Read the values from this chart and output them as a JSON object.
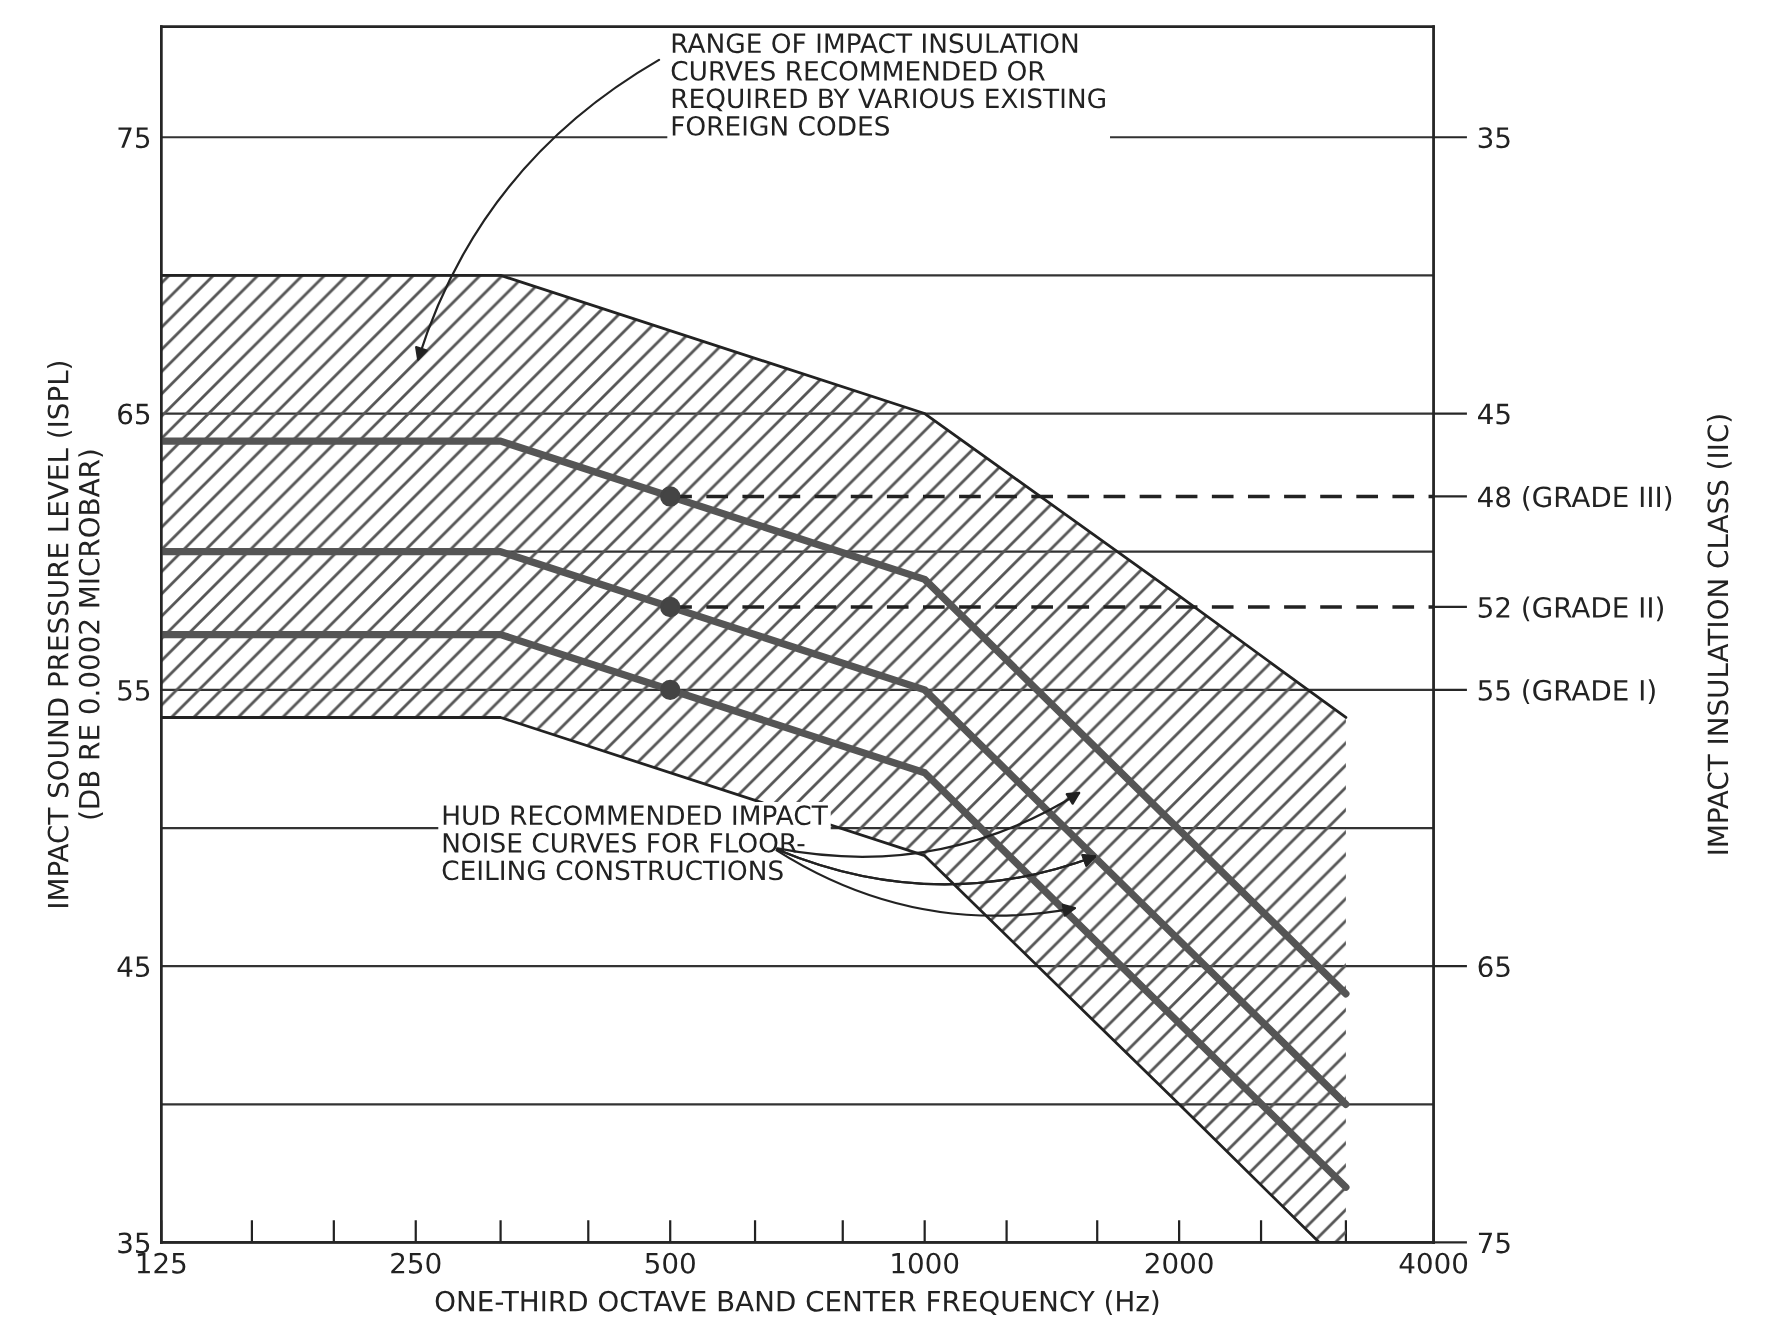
{
  "chart_data": {
    "type": "line",
    "xlabel": "ONE-THIRD OCTAVE BAND CENTER FREQUENCY (Hz)",
    "ylabel": "IMPACT SOUND PRESSURE LEVEL (ISPL)\n(DB RE 0.0002 MICROBAR)",
    "y2label": "IMPACT INSULATION CLASS (IIC)",
    "log": "x",
    "xlim": [
      125,
      4000
    ],
    "xticks": [
      125,
      {
        "value": 160,
        "label": null
      },
      {
        "value": 200,
        "label": null
      },
      250,
      {
        "value": 315,
        "label": null
      },
      {
        "value": 400,
        "label": null
      },
      500,
      {
        "value": 630,
        "label": null
      },
      {
        "value": 800,
        "label": null
      },
      1000,
      {
        "value": 1250,
        "label": null
      },
      {
        "value": 1600,
        "label": null
      },
      2000,
      {
        "value": 2500,
        "label": null
      },
      {
        "value": 3150,
        "label": null
      },
      4000
    ],
    "ylim": [
      35,
      79
    ],
    "yticks": [
      35,
      {
        "value": 40,
        "label": null
      },
      45,
      {
        "value": 50,
        "label": null
      },
      55,
      {
        "value": 60,
        "label": null
      },
      65,
      {
        "value": 70,
        "label": null
      },
      75
    ],
    "y2lim": [
      75,
      31
    ],
    "y2ticks": [
      35,
      45,
      {
        "value": 48,
        "label": "48 (GRADE III)"
      },
      {
        "value": 52,
        "label": "52 (GRADE II)"
      },
      {
        "value": 55,
        "label": "55 (GRADE I)"
      },
      65,
      75
    ],
    "grid": true,
    "series": [
      {
        "type": "area",
        "color": "#555555",
        "x": [
          125,
          315,
          1000,
          2000,
          2930,
          3150
        ],
        "values": [
          70,
          70,
          65,
          58.4,
          54.7,
          54
        ]
      },
      {
        "color": "#222222",
        "line_style": "solid",
        "x": [
          125,
          315,
          1000,
          2000,
          2930,
          3150
        ],
        "values": [
          54,
          54,
          49,
          40,
          35,
          35
        ]
      },
      {
        "color": "#555555",
        "x": [
          125,
          315,
          1000,
          3150
        ],
        "values": [
          64,
          64,
          59,
          44
        ]
      },
      {
        "color": "#555555",
        "x": [
          125,
          315,
          1000,
          3150
        ],
        "values": [
          60,
          60,
          55,
          40
        ]
      },
      {
        "color": "#555555",
        "x": [
          125,
          315,
          1000,
          3150
        ],
        "values": [
          57,
          57,
          52,
          37
        ]
      },
      {
        "color": "#222222",
        "line_style": "dashed",
        "x": [
          500,
          4000
        ],
        "values": [
          62,
          62
        ]
      },
      {
        "color": "#222222",
        "line_style": "dashed",
        "x": [
          500,
          4000
        ],
        "values": [
          58,
          58
        ]
      },
      {
        "type": "scatter",
        "color": "#444444",
        "marker": "circle",
        "x": [
          500,
          500,
          500
        ],
        "values": [
          62,
          58,
          55
        ]
      }
    ],
    "annotations": [
      "RANGE OF IMPACT INSULATION\nCURVES RECOMMENDED OR\nREQUIRED BY VARIOUS EXISTING\nFOREIGN CODES",
      {
        "text": "HUD RECOMMENDED IMPACT\nNOISE CURVES FOR FLOOR-\nCEILING CONSTRUCTIONS",
        "x": 1600,
        "y": 49
      }
    ]
  }
}
